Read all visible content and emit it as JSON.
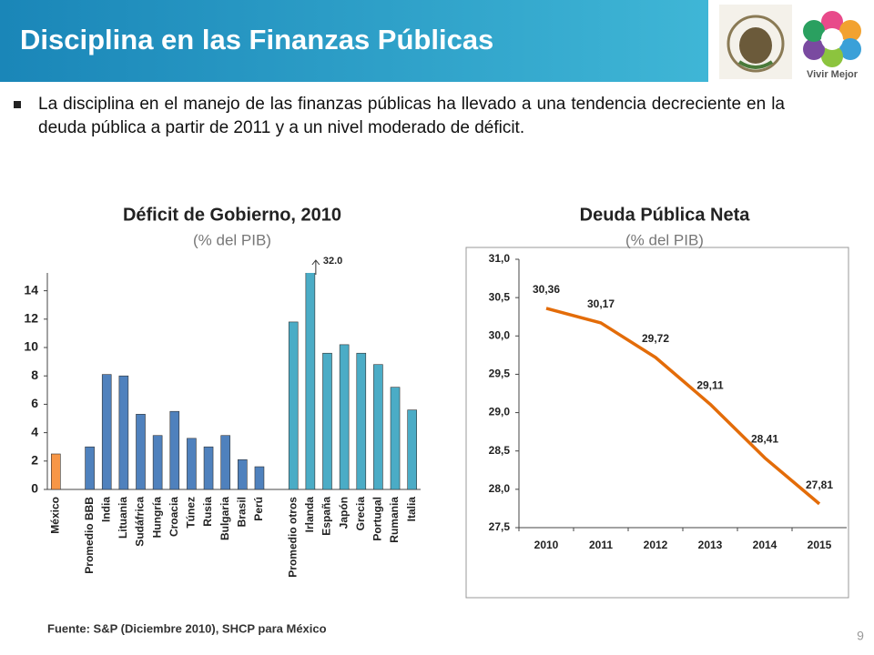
{
  "header": {
    "title": "Disciplina en las Finanzas Públicas",
    "logo_text": "Vivir Mejor"
  },
  "bullet": "La disciplina en el manejo de las finanzas públicas ha llevado a una tendencia decreciente en la deuda pública a partir de 2011 y a un nivel moderado de déficit.",
  "chart_data": [
    {
      "type": "bar",
      "title": "Déficit de Gobierno, 2010",
      "subtitle": "(% del PIB)",
      "categories": [
        "México",
        null,
        "Promedio BBB",
        "India",
        "Lituania",
        "Sudáfrica",
        "Hungría",
        "Croacia",
        "Túnez",
        "Rusia",
        "Bulgaria",
        "Brasil",
        "Perú",
        null,
        "Promedio otros",
        "Irlanda",
        "España",
        "Japón",
        "Grecia",
        "Portugal",
        "Rumania",
        "Italia"
      ],
      "values": [
        2.5,
        null,
        3.0,
        8.1,
        8.0,
        5.3,
        3.8,
        5.5,
        3.6,
        3.0,
        3.8,
        2.1,
        1.6,
        null,
        11.8,
        32.0,
        9.6,
        10.2,
        9.6,
        8.8,
        7.2,
        5.6
      ],
      "value_labels": [
        null,
        null,
        null,
        null,
        null,
        null,
        null,
        null,
        null,
        null,
        null,
        null,
        null,
        null,
        null,
        "32.0",
        null,
        null,
        null,
        null,
        null,
        null
      ],
      "colors": [
        "#f79646",
        null,
        "#4f81bd",
        "#4f81bd",
        "#4f81bd",
        "#4f81bd",
        "#4f81bd",
        "#4f81bd",
        "#4f81bd",
        "#4f81bd",
        "#4f81bd",
        "#4f81bd",
        "#4f81bd",
        null,
        "#4bacc6",
        "#4bacc6",
        "#4bacc6",
        "#4bacc6",
        "#4bacc6",
        "#4bacc6",
        "#4bacc6",
        "#4bacc6"
      ],
      "ylim": [
        0,
        15
      ],
      "yticks": [
        0,
        2,
        4,
        6,
        8,
        10,
        12,
        14
      ],
      "grid": false
    },
    {
      "type": "line",
      "title": "Deuda Pública Neta",
      "subtitle": "(% del PIB)",
      "categories": [
        "2010",
        "2011",
        "2012",
        "2013",
        "2014",
        "2015"
      ],
      "values": [
        30.36,
        30.17,
        29.72,
        29.11,
        28.41,
        27.81
      ],
      "value_labels": [
        "30,36",
        "30,17",
        "29,72",
        "29,11",
        "28,41",
        "27,81"
      ],
      "color": "#e36c09",
      "ylim": [
        27.5,
        31.0
      ],
      "yticks": [
        {
          "value": 27.5,
          "label": "27,5"
        },
        {
          "value": 28.0,
          "label": "28,0"
        },
        {
          "value": 28.5,
          "label": "28,5"
        },
        {
          "value": 29.0,
          "label": "29,0"
        },
        {
          "value": 29.5,
          "label": "29,5"
        },
        {
          "value": 30.0,
          "label": "30,0"
        },
        {
          "value": 30.5,
          "label": "30,5"
        },
        {
          "value": 31.0,
          "label": "31,0"
        }
      ],
      "grid": false
    }
  ],
  "footer": {
    "source": "Fuente: S&P (Diciembre 2010), SHCP para México",
    "page": "9"
  }
}
